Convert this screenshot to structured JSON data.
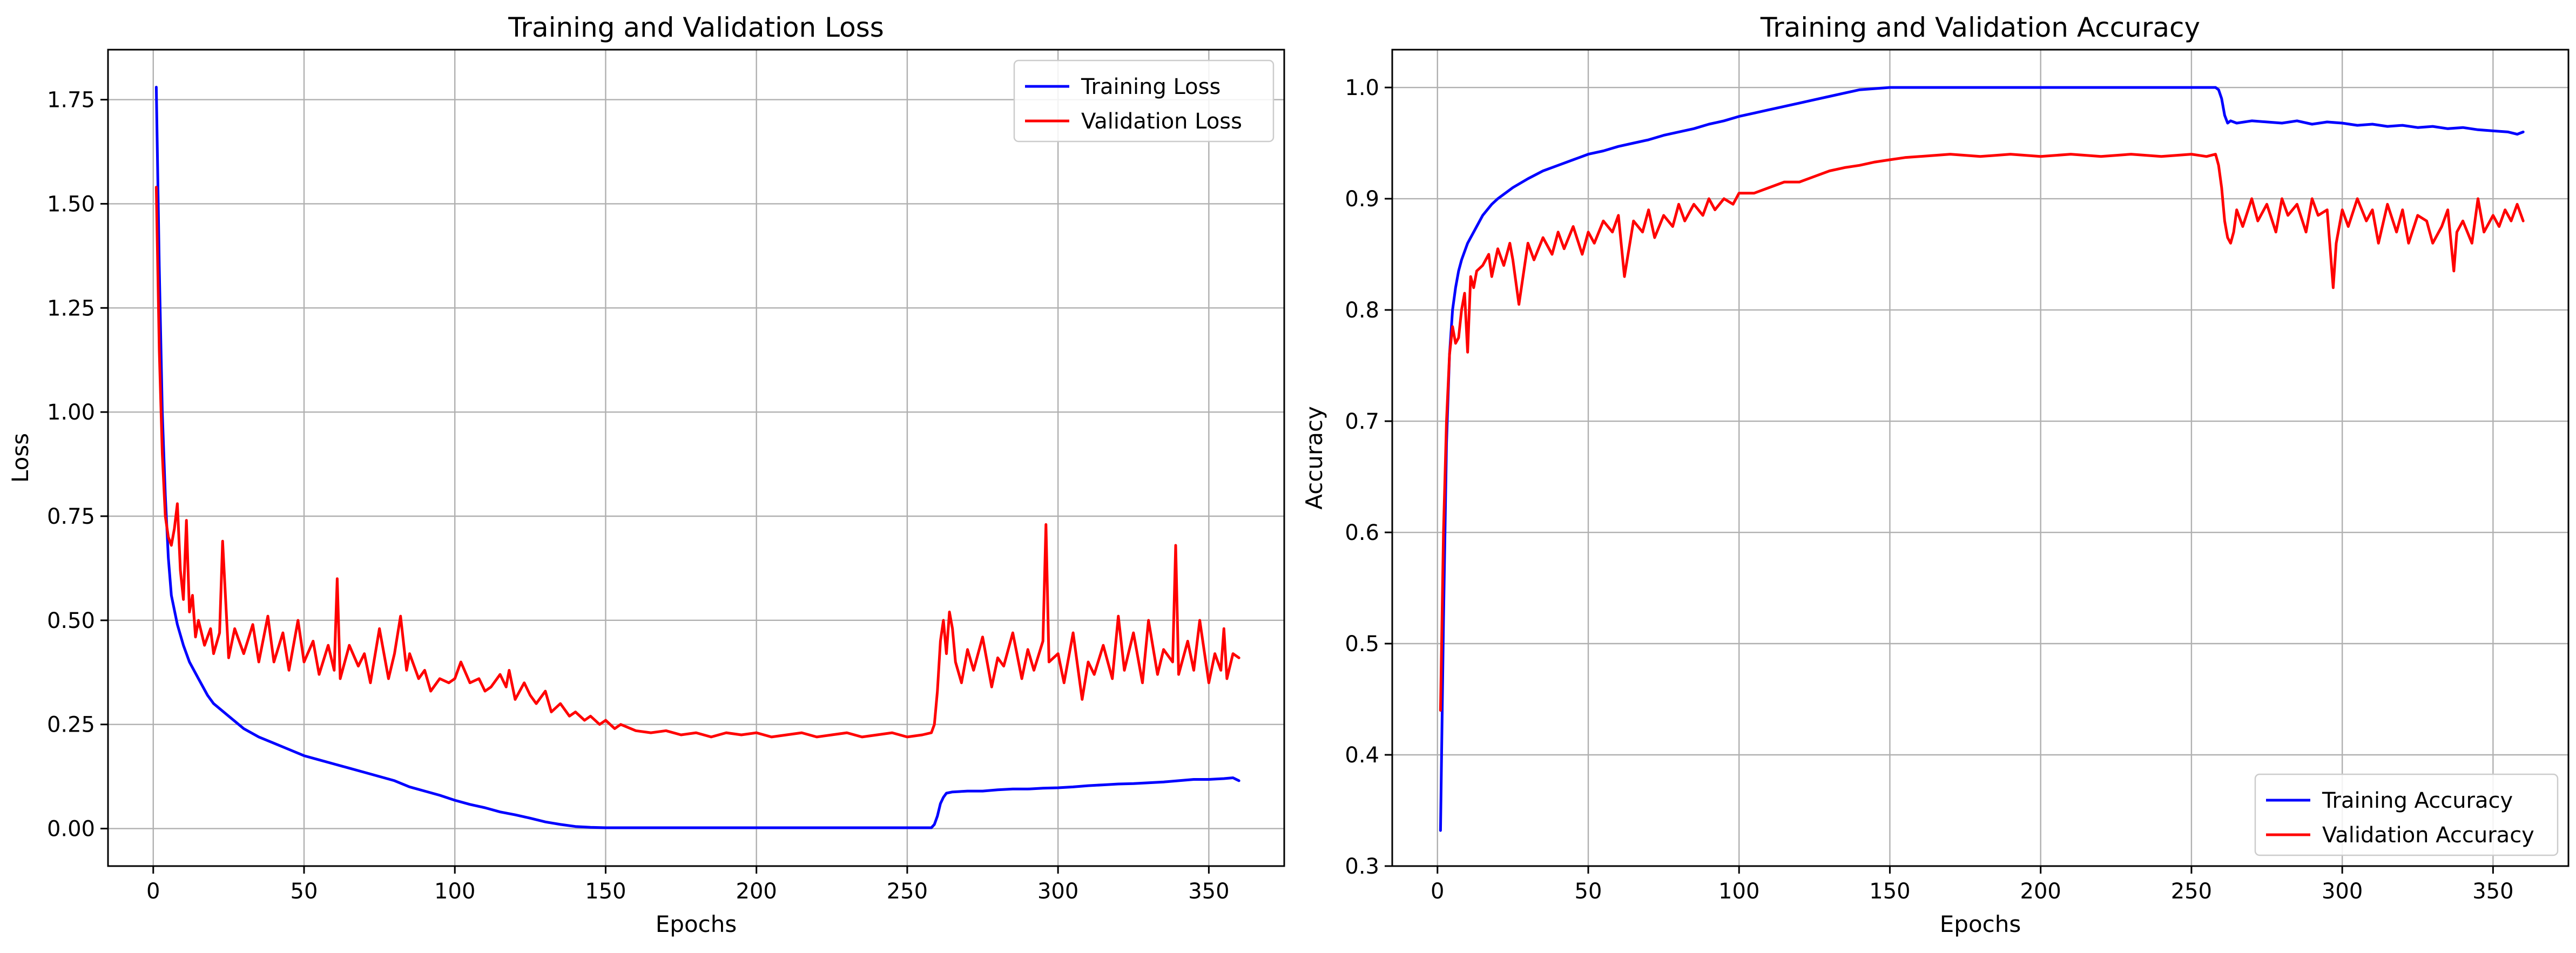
{
  "chart_data": [
    {
      "type": "line",
      "title": "Training and Validation Loss",
      "xlabel": "Epochs",
      "ylabel": "Loss",
      "xlim": [
        -15,
        375
      ],
      "ylim": [
        -0.09,
        1.87
      ],
      "xticks": [
        0,
        50,
        100,
        150,
        200,
        250,
        300,
        350
      ],
      "yticks": [
        0.0,
        0.25,
        0.5,
        0.75,
        1.0,
        1.25,
        1.5,
        1.75
      ],
      "ytick_decimals": 2,
      "grid": true,
      "legend": "top-right",
      "series": [
        {
          "name": "Training Loss",
          "color": "#0000ff",
          "x": [
            1,
            2,
            3,
            4,
            5,
            6,
            8,
            10,
            12,
            15,
            18,
            20,
            25,
            30,
            35,
            40,
            45,
            50,
            55,
            60,
            65,
            70,
            75,
            80,
            85,
            90,
            95,
            100,
            105,
            110,
            115,
            120,
            125,
            130,
            135,
            140,
            145,
            150,
            155,
            160,
            200,
            250,
            258,
            259,
            260,
            261,
            262,
            263,
            265,
            270,
            275,
            280,
            285,
            290,
            295,
            300,
            305,
            310,
            315,
            320,
            325,
            330,
            335,
            340,
            345,
            350,
            355,
            358,
            360
          ],
          "y": [
            1.78,
            1.35,
            1.0,
            0.8,
            0.65,
            0.56,
            0.49,
            0.44,
            0.4,
            0.36,
            0.32,
            0.3,
            0.27,
            0.24,
            0.22,
            0.205,
            0.19,
            0.175,
            0.165,
            0.155,
            0.145,
            0.135,
            0.125,
            0.115,
            0.1,
            0.09,
            0.08,
            0.068,
            0.058,
            0.05,
            0.04,
            0.033,
            0.025,
            0.016,
            0.01,
            0.005,
            0.003,
            0.002,
            0.002,
            0.002,
            0.002,
            0.002,
            0.002,
            0.01,
            0.03,
            0.06,
            0.075,
            0.085,
            0.088,
            0.09,
            0.09,
            0.093,
            0.095,
            0.095,
            0.097,
            0.098,
            0.1,
            0.103,
            0.105,
            0.107,
            0.108,
            0.11,
            0.112,
            0.115,
            0.118,
            0.118,
            0.12,
            0.122,
            0.115
          ]
        },
        {
          "name": "Validation Loss",
          "color": "#ff0000",
          "x": [
            1,
            2,
            3,
            4,
            5,
            6,
            7,
            8,
            9,
            10,
            11,
            12,
            13,
            14,
            15,
            17,
            19,
            20,
            22,
            23,
            25,
            27,
            30,
            33,
            35,
            38,
            40,
            43,
            45,
            48,
            50,
            53,
            55,
            58,
            60,
            61,
            62,
            65,
            68,
            70,
            72,
            75,
            78,
            80,
            82,
            84,
            85,
            88,
            90,
            92,
            95,
            98,
            100,
            102,
            105,
            108,
            110,
            112,
            115,
            117,
            118,
            120,
            123,
            125,
            127,
            130,
            132,
            135,
            138,
            140,
            143,
            145,
            148,
            150,
            153,
            155,
            160,
            165,
            170,
            175,
            180,
            185,
            190,
            195,
            200,
            205,
            210,
            215,
            220,
            225,
            230,
            235,
            240,
            245,
            250,
            255,
            258,
            259,
            260,
            261,
            262,
            263,
            264,
            265,
            266,
            268,
            270,
            272,
            275,
            278,
            280,
            282,
            285,
            288,
            290,
            292,
            295,
            296,
            297,
            300,
            302,
            305,
            308,
            310,
            312,
            315,
            318,
            320,
            322,
            325,
            328,
            330,
            333,
            335,
            338,
            339,
            340,
            343,
            345,
            347,
            350,
            352,
            354,
            355,
            356,
            358,
            360
          ],
          "y": [
            1.54,
            1.15,
            0.9,
            0.75,
            0.7,
            0.68,
            0.72,
            0.78,
            0.62,
            0.55,
            0.74,
            0.52,
            0.56,
            0.46,
            0.5,
            0.44,
            0.48,
            0.42,
            0.47,
            0.69,
            0.41,
            0.48,
            0.42,
            0.49,
            0.4,
            0.51,
            0.4,
            0.47,
            0.38,
            0.5,
            0.4,
            0.45,
            0.37,
            0.44,
            0.38,
            0.6,
            0.36,
            0.44,
            0.39,
            0.42,
            0.35,
            0.48,
            0.36,
            0.42,
            0.51,
            0.38,
            0.42,
            0.36,
            0.38,
            0.33,
            0.36,
            0.35,
            0.36,
            0.4,
            0.35,
            0.36,
            0.33,
            0.34,
            0.37,
            0.34,
            0.38,
            0.31,
            0.35,
            0.32,
            0.3,
            0.33,
            0.28,
            0.3,
            0.27,
            0.28,
            0.26,
            0.27,
            0.25,
            0.26,
            0.24,
            0.25,
            0.235,
            0.23,
            0.235,
            0.225,
            0.23,
            0.22,
            0.23,
            0.225,
            0.23,
            0.22,
            0.225,
            0.23,
            0.22,
            0.225,
            0.23,
            0.22,
            0.225,
            0.23,
            0.22,
            0.225,
            0.23,
            0.25,
            0.33,
            0.45,
            0.5,
            0.42,
            0.52,
            0.48,
            0.4,
            0.35,
            0.43,
            0.38,
            0.46,
            0.34,
            0.41,
            0.39,
            0.47,
            0.36,
            0.43,
            0.38,
            0.45,
            0.73,
            0.4,
            0.42,
            0.35,
            0.47,
            0.31,
            0.4,
            0.37,
            0.44,
            0.36,
            0.51,
            0.38,
            0.47,
            0.35,
            0.5,
            0.37,
            0.43,
            0.4,
            0.68,
            0.37,
            0.45,
            0.38,
            0.5,
            0.35,
            0.42,
            0.38,
            0.48,
            0.36,
            0.42,
            0.41
          ]
        }
      ]
    },
    {
      "type": "line",
      "title": "Training and Validation Accuracy",
      "xlabel": "Epochs",
      "ylabel": "Accuracy",
      "xlim": [
        -15,
        375
      ],
      "ylim": [
        0.3,
        1.034
      ],
      "xticks": [
        0,
        50,
        100,
        150,
        200,
        250,
        300,
        350
      ],
      "yticks": [
        0.3,
        0.4,
        0.5,
        0.6,
        0.7,
        0.8,
        0.9,
        1.0
      ],
      "ytick_decimals": 1,
      "grid": true,
      "legend": "bottom-right",
      "series": [
        {
          "name": "Training Accuracy",
          "color": "#0000ff",
          "x": [
            1,
            2,
            3,
            4,
            5,
            6,
            7,
            8,
            10,
            12,
            15,
            18,
            20,
            25,
            30,
            35,
            40,
            45,
            50,
            55,
            60,
            65,
            70,
            75,
            80,
            85,
            90,
            95,
            100,
            105,
            110,
            115,
            120,
            125,
            130,
            135,
            140,
            145,
            150,
            160,
            200,
            250,
            258,
            259,
            260,
            261,
            262,
            263,
            265,
            270,
            275,
            280,
            285,
            290,
            295,
            300,
            305,
            310,
            315,
            320,
            325,
            330,
            335,
            340,
            345,
            350,
            355,
            358,
            360
          ],
          "y": [
            0.332,
            0.52,
            0.68,
            0.76,
            0.8,
            0.82,
            0.835,
            0.845,
            0.86,
            0.87,
            0.885,
            0.895,
            0.9,
            0.91,
            0.918,
            0.925,
            0.93,
            0.935,
            0.94,
            0.943,
            0.947,
            0.95,
            0.953,
            0.957,
            0.96,
            0.963,
            0.967,
            0.97,
            0.974,
            0.977,
            0.98,
            0.983,
            0.986,
            0.989,
            0.992,
            0.995,
            0.998,
            0.999,
            1.0,
            1.0,
            1.0,
            1.0,
            1.0,
            0.998,
            0.99,
            0.975,
            0.968,
            0.97,
            0.968,
            0.97,
            0.969,
            0.968,
            0.97,
            0.967,
            0.969,
            0.968,
            0.966,
            0.967,
            0.965,
            0.966,
            0.964,
            0.965,
            0.963,
            0.964,
            0.962,
            0.961,
            0.96,
            0.958,
            0.96
          ]
        },
        {
          "name": "Validation Accuracy",
          "color": "#ff0000",
          "x": [
            1,
            2,
            3,
            4,
            5,
            6,
            7,
            8,
            9,
            10,
            11,
            12,
            13,
            15,
            17,
            18,
            20,
            22,
            24,
            25,
            27,
            30,
            32,
            35,
            38,
            40,
            42,
            45,
            48,
            50,
            52,
            55,
            58,
            60,
            62,
            65,
            68,
            70,
            72,
            75,
            78,
            80,
            82,
            85,
            88,
            90,
            92,
            95,
            98,
            100,
            105,
            110,
            115,
            120,
            125,
            130,
            135,
            140,
            145,
            150,
            155,
            160,
            170,
            180,
            190,
            200,
            210,
            220,
            230,
            240,
            250,
            255,
            258,
            259,
            260,
            261,
            262,
            263,
            264,
            265,
            267,
            270,
            272,
            275,
            278,
            280,
            282,
            285,
            288,
            290,
            292,
            295,
            297,
            298,
            300,
            302,
            305,
            308,
            310,
            312,
            315,
            318,
            320,
            322,
            325,
            328,
            330,
            333,
            335,
            337,
            338,
            340,
            343,
            345,
            347,
            350,
            352,
            354,
            356,
            358,
            360
          ],
          "y": [
            0.44,
            0.6,
            0.7,
            0.76,
            0.785,
            0.77,
            0.775,
            0.8,
            0.815,
            0.762,
            0.83,
            0.82,
            0.835,
            0.84,
            0.85,
            0.83,
            0.855,
            0.84,
            0.86,
            0.845,
            0.805,
            0.86,
            0.845,
            0.865,
            0.85,
            0.87,
            0.855,
            0.875,
            0.85,
            0.87,
            0.86,
            0.88,
            0.87,
            0.885,
            0.83,
            0.88,
            0.87,
            0.89,
            0.865,
            0.885,
            0.875,
            0.895,
            0.88,
            0.895,
            0.885,
            0.9,
            0.89,
            0.9,
            0.895,
            0.905,
            0.905,
            0.91,
            0.915,
            0.915,
            0.92,
            0.925,
            0.928,
            0.93,
            0.933,
            0.935,
            0.937,
            0.938,
            0.94,
            0.938,
            0.94,
            0.938,
            0.94,
            0.938,
            0.94,
            0.938,
            0.94,
            0.938,
            0.94,
            0.93,
            0.91,
            0.88,
            0.865,
            0.86,
            0.87,
            0.89,
            0.875,
            0.9,
            0.88,
            0.895,
            0.87,
            0.9,
            0.885,
            0.895,
            0.87,
            0.9,
            0.885,
            0.89,
            0.82,
            0.86,
            0.89,
            0.875,
            0.9,
            0.88,
            0.89,
            0.86,
            0.895,
            0.87,
            0.89,
            0.86,
            0.885,
            0.88,
            0.86,
            0.875,
            0.89,
            0.835,
            0.87,
            0.88,
            0.86,
            0.9,
            0.87,
            0.885,
            0.875,
            0.89,
            0.88,
            0.895,
            0.88
          ]
        }
      ]
    }
  ]
}
